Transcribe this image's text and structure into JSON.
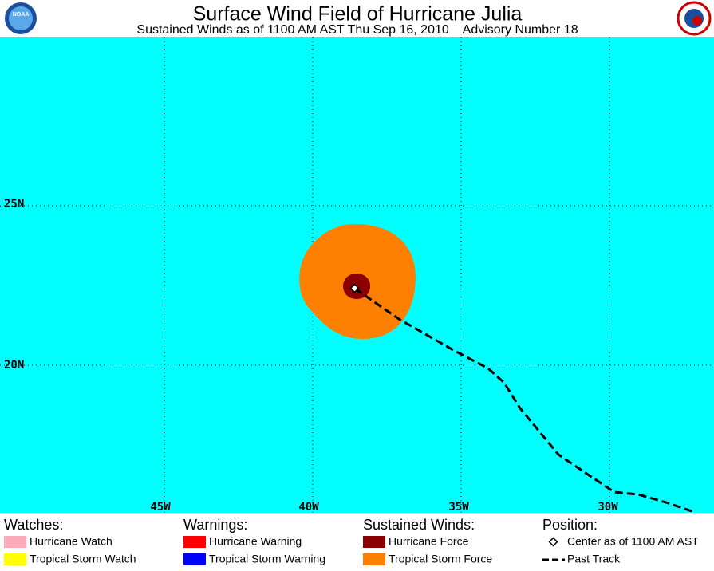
{
  "header": {
    "title": "Surface Wind Field of Hurricane Julia",
    "subtitle": "Sustained Winds as of 1100 AM AST Thu Sep 16, 2010    Advisory Number 18",
    "logo_left": "NOAA"
  },
  "map": {
    "lat_labels": [
      "25N",
      "20N"
    ],
    "lon_labels": [
      "45W",
      "40W",
      "35W",
      "30W"
    ]
  },
  "legend": {
    "watches": {
      "title": "Watches:",
      "items": [
        "Hurricane Watch",
        "Tropical Storm Watch"
      ]
    },
    "warnings": {
      "title": "Warnings:",
      "items": [
        "Hurricane Warning",
        "Tropical Storm Warning"
      ]
    },
    "winds": {
      "title": "Sustained Winds:",
      "items": [
        "Hurricane Force",
        "Tropical Storm Force"
      ]
    },
    "position": {
      "title": "Position:",
      "items": [
        "Center as of 1100 AM AST",
        "Past Track"
      ]
    }
  }
}
